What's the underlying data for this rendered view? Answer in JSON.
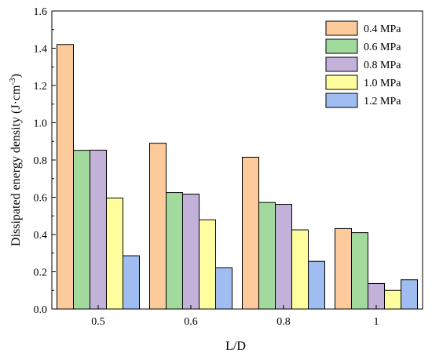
{
  "chart_data": {
    "type": "bar",
    "categories": [
      "0.5",
      "0.6",
      "0.8",
      "1"
    ],
    "series": [
      {
        "name": "0.4 MPa",
        "values": [
          1.42,
          0.89,
          0.815,
          0.432
        ],
        "color": "#FDCB9B"
      },
      {
        "name": "0.6 MPa",
        "values": [
          0.852,
          0.625,
          0.572,
          0.41
        ],
        "color": "#A2DA9E"
      },
      {
        "name": "0.8 MPa",
        "values": [
          0.853,
          0.617,
          0.562,
          0.137
        ],
        "color": "#C2B2D9"
      },
      {
        "name": "1.0 MPa",
        "values": [
          0.596,
          0.479,
          0.425,
          0.1
        ],
        "color": "#FEFE9F"
      },
      {
        "name": "1.2 MPa",
        "values": [
          0.286,
          0.221,
          0.256,
          0.157
        ],
        "color": "#9FBDF0"
      }
    ],
    "xlabel": "L/D",
    "ylabel": "Dissipated energy density (J·cm",
    "ylabel_superscript": "-3",
    "ylabel_close": ")",
    "ylim": [
      0,
      1.6
    ],
    "yticks": [
      "0.0",
      "0.2",
      "0.4",
      "0.6",
      "0.8",
      "1.0",
      "1.2",
      "1.4",
      "1.6"
    ],
    "grid": false,
    "legend_position": "top-right"
  }
}
